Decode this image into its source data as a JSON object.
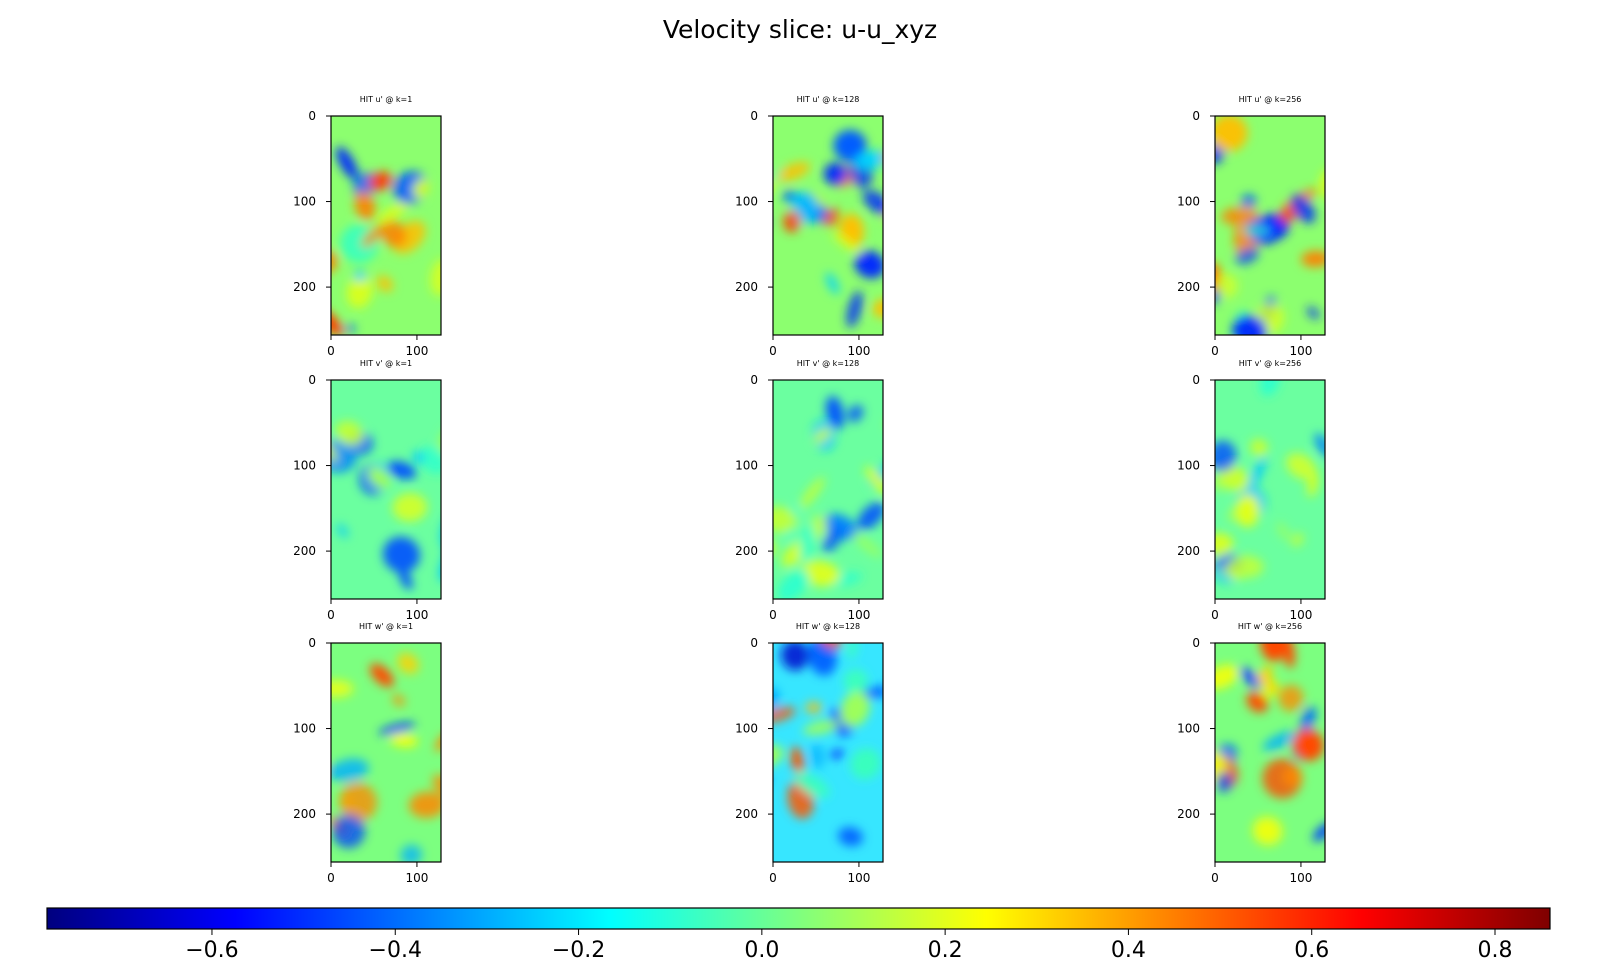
{
  "title": "Velocity slice: u-u_xyz",
  "chart_data": [
    {
      "type": "heatmap",
      "title": "HIT u' @ k=1",
      "field": "u",
      "k": 1,
      "xlim": [
        0,
        128
      ],
      "ylim": [
        256,
        0
      ],
      "xticks": [
        "0",
        "100"
      ],
      "yticks": [
        "0",
        "100",
        "200"
      ]
    },
    {
      "type": "heatmap",
      "title": "HIT u' @ k=128",
      "field": "u",
      "k": 128,
      "xlim": [
        0,
        128
      ],
      "ylim": [
        256,
        0
      ],
      "xticks": [
        "0",
        "100"
      ],
      "yticks": [
        "0",
        "100",
        "200"
      ]
    },
    {
      "type": "heatmap",
      "title": "HIT u' @ k=256",
      "field": "u",
      "k": 256,
      "xlim": [
        0,
        128
      ],
      "ylim": [
        256,
        0
      ],
      "xticks": [
        "0",
        "100"
      ],
      "yticks": [
        "0",
        "100",
        "200"
      ]
    },
    {
      "type": "heatmap",
      "title": "HIT v' @ k=1",
      "field": "v",
      "k": 1,
      "xlim": [
        0,
        128
      ],
      "ylim": [
        256,
        0
      ],
      "xticks": [
        "0",
        "100"
      ],
      "yticks": [
        "0",
        "100",
        "200"
      ]
    },
    {
      "type": "heatmap",
      "title": "HIT v' @ k=128",
      "field": "v",
      "k": 128,
      "xlim": [
        0,
        128
      ],
      "ylim": [
        256,
        0
      ],
      "xticks": [
        "0",
        "100"
      ],
      "yticks": [
        "0",
        "100",
        "200"
      ]
    },
    {
      "type": "heatmap",
      "title": "HIT v' @ k=256",
      "field": "v",
      "k": 256,
      "xlim": [
        0,
        128
      ],
      "ylim": [
        256,
        0
      ],
      "xticks": [
        "0",
        "100"
      ],
      "yticks": [
        "0",
        "100",
        "200"
      ]
    },
    {
      "type": "heatmap",
      "title": "HIT w' @ k=1",
      "field": "w",
      "k": 1,
      "xlim": [
        0,
        128
      ],
      "ylim": [
        256,
        0
      ],
      "xticks": [
        "0",
        "100"
      ],
      "yticks": [
        "0",
        "100",
        "200"
      ]
    },
    {
      "type": "heatmap",
      "title": "HIT w' @ k=128",
      "field": "w",
      "k": 128,
      "xlim": [
        0,
        128
      ],
      "ylim": [
        256,
        0
      ],
      "xticks": [
        "0",
        "100"
      ],
      "yticks": [
        "0",
        "100",
        "200"
      ]
    },
    {
      "type": "heatmap",
      "title": "HIT w' @ k=256",
      "field": "w",
      "k": 256,
      "xlim": [
        0,
        128
      ],
      "ylim": [
        256,
        0
      ],
      "xticks": [
        "0",
        "100"
      ],
      "yticks": [
        "0",
        "100",
        "200"
      ]
    }
  ],
  "colorbar": {
    "colormap": "jet",
    "range": [
      -0.78,
      0.86
    ],
    "ticks": [
      -0.6,
      -0.4,
      -0.2,
      0.0,
      0.2,
      0.4,
      0.6,
      0.8
    ],
    "tick_labels": [
      "−0.6",
      "−0.4",
      "−0.2",
      "0.0",
      "0.2",
      "0.4",
      "0.6",
      "0.8"
    ],
    "colors": [
      "#00007f",
      "#0000ff",
      "#007fff",
      "#00ffff",
      "#7fff7f",
      "#ffff00",
      "#ff7f00",
      "#ff0000",
      "#7f0000"
    ]
  }
}
